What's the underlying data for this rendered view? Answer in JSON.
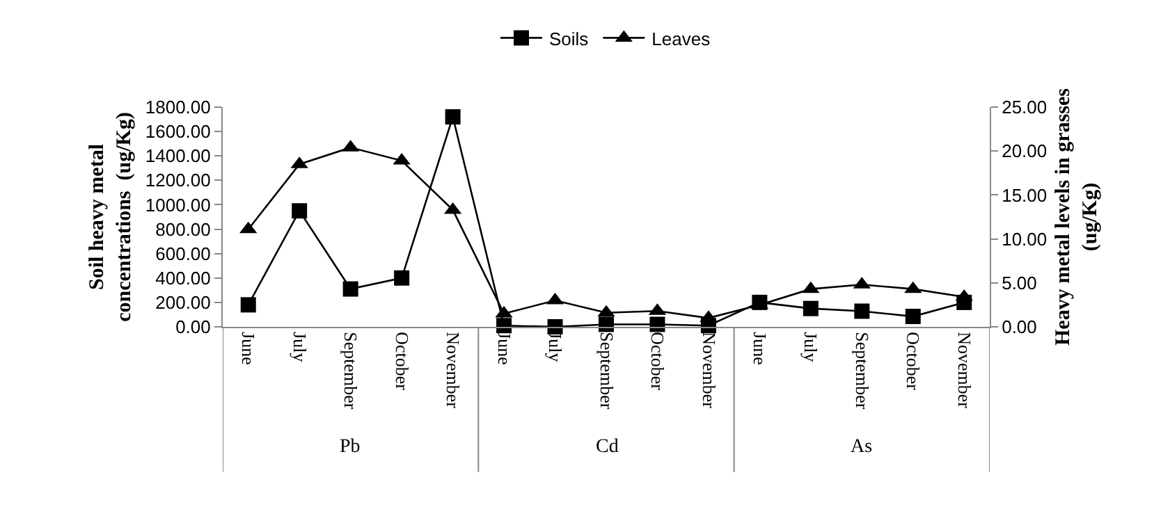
{
  "chart_data": {
    "type": "line",
    "ylabel": "Soil heavy metal concentrations  (ug/Kg)",
    "y2label": "Heavy metal levels in  grasses (ug/Kg)",
    "categories": [
      "June",
      "July",
      "September",
      "October",
      "November",
      "June",
      "July",
      "September",
      "October",
      "November",
      "June",
      "July",
      "September",
      "October",
      "November"
    ],
    "annotations": [
      "Pb",
      "Cd",
      "As"
    ],
    "series": [
      {
        "name": "Soils",
        "color": "#000000",
        "marker": "square",
        "values": [
          180,
          950,
          310,
          400,
          1720,
          10,
          0,
          20,
          20,
          10,
          200,
          150,
          128,
          85,
          200
        ]
      },
      {
        "name": "Leaves",
        "color": "#000000",
        "marker": "triangle",
        "axis": "y2",
        "values": [
          11.1,
          18.5,
          20.4,
          18.9,
          13.3,
          1.5,
          3.0,
          1.6,
          1.8,
          1.0,
          2.5,
          4.3,
          4.8,
          4.3,
          3.4
        ]
      }
    ],
    "ylim": [
      0,
      1800
    ],
    "yticks": [
      {
        "value": 0,
        "label": "0.00"
      },
      {
        "value": 200,
        "label": "200.00"
      },
      {
        "value": 400,
        "label": "400.00"
      },
      {
        "value": 600,
        "label": "600.00"
      },
      {
        "value": 800,
        "label": "800.00"
      },
      {
        "value": 1000,
        "label": "1000.00"
      },
      {
        "value": 1200,
        "label": "1200.00"
      },
      {
        "value": 1400,
        "label": "1400.00"
      },
      {
        "value": 1600,
        "label": "1600.00"
      },
      {
        "value": 1800,
        "label": "1800.00"
      }
    ],
    "y2lim": [
      0,
      25
    ],
    "y2ticks": [
      {
        "value": 0,
        "label": "0.00"
      },
      {
        "value": 5,
        "label": "5.00"
      },
      {
        "value": 10,
        "label": "10.00"
      },
      {
        "value": 15,
        "label": "15.00"
      },
      {
        "value": 20,
        "label": "20.00"
      },
      {
        "value": 25,
        "label": "25.00"
      }
    ],
    "grid": false,
    "legend": "top",
    "line_style": "solid"
  }
}
